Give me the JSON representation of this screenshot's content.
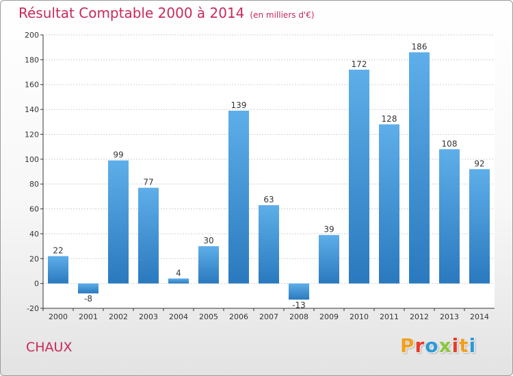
{
  "colors": {
    "title": "#c8285a",
    "bar_top": "#5eaee9",
    "bar_bottom": "#2a79be",
    "axis": "#333333",
    "grid": "#cfcfcf"
  },
  "footer": {
    "commune": "CHAUX",
    "logo": "Proxiti"
  },
  "chart_data": {
    "type": "bar",
    "title": "Résultat Comptable 2000 à 2014",
    "subtitle": "(en milliers d'€)",
    "xlabel": "",
    "ylabel": "",
    "categories": [
      "2000",
      "2001",
      "2002",
      "2003",
      "2004",
      "2005",
      "2006",
      "2007",
      "2008",
      "2009",
      "2010",
      "2011",
      "2012",
      "2013",
      "2014"
    ],
    "values": [
      22,
      -8,
      99,
      77,
      4,
      30,
      139,
      63,
      -13,
      39,
      172,
      128,
      186,
      108,
      92
    ],
    "ylim": [
      -20,
      200
    ],
    "yticks": [
      -20,
      0,
      20,
      40,
      60,
      80,
      100,
      120,
      140,
      160,
      180,
      200
    ],
    "grid": true,
    "legend": "none"
  }
}
